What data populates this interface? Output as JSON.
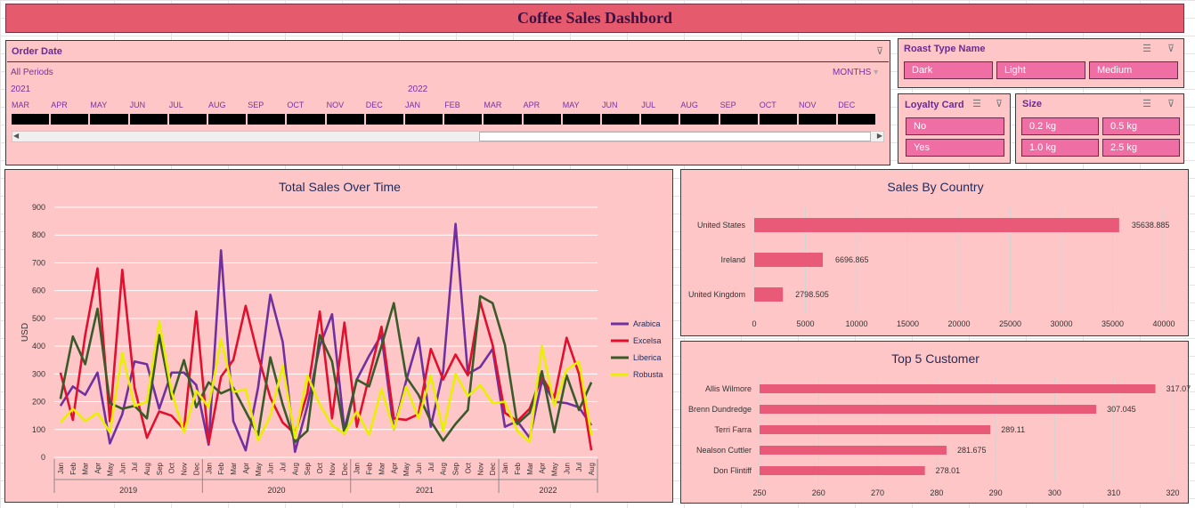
{
  "dashboard": {
    "title": "Coffee Sales Dashbord"
  },
  "timeline": {
    "title": "Order Date",
    "period": "All Periods",
    "level": "MONTHS",
    "years": [
      "2021",
      "2022"
    ],
    "months": [
      "MAR",
      "APR",
      "MAY",
      "JUN",
      "JUL",
      "AUG",
      "SEP",
      "OCT",
      "NOV",
      "DEC",
      "JAN",
      "FEB",
      "MAR",
      "APR",
      "MAY",
      "JUN",
      "JUL",
      "AUG",
      "SEP",
      "OCT",
      "NOV",
      "DEC"
    ]
  },
  "roast_slicer": {
    "title": "Roast Type Name",
    "items": [
      "Dark",
      "Light",
      "Medium"
    ]
  },
  "loyalty_slicer": {
    "title": "Loyalty Card",
    "items": [
      "No",
      "Yes"
    ]
  },
  "size_slicer": {
    "title": "Size",
    "items": [
      "0.2 kg",
      "0.5 kg",
      "1.0 kg",
      "2.5 kg"
    ]
  },
  "colors": {
    "arabica": "#7030a0",
    "excelsa": "#e0102e",
    "liberica": "#3a5a2a",
    "robusta": "#e8f000",
    "bar": "#e85a78",
    "panel": "#ffc6c7",
    "timeline_bar": "#000000"
  },
  "chart_data": [
    {
      "type": "line",
      "title": "Total Sales Over Time",
      "ylabel": "USD",
      "ylim": [
        0,
        900
      ],
      "yticks": [
        0,
        100,
        200,
        300,
        400,
        500,
        600,
        700,
        800,
        900
      ],
      "years": [
        "2019",
        "2020",
        "2021",
        "2022"
      ],
      "x": [
        "Jan",
        "Feb",
        "Mar",
        "Apr",
        "May",
        "Jun",
        "Jul",
        "Aug",
        "Sep",
        "Oct",
        "Nov",
        "Dec",
        "Jan",
        "Feb",
        "Mar",
        "Apr",
        "May",
        "Jun",
        "Jul",
        "Aug",
        "Sep",
        "Oct",
        "Nov",
        "Dec",
        "Jan",
        "Feb",
        "Mar",
        "Apr",
        "May",
        "Jun",
        "Jul",
        "Aug",
        "Sep",
        "Oct",
        "Nov",
        "Dec",
        "Jan",
        "Feb",
        "Mar",
        "Apr",
        "May",
        "Jun",
        "Jul",
        "Aug"
      ],
      "legend": "right",
      "series": [
        {
          "name": "Arabica",
          "color": "#7030a0",
          "values": [
            185,
            255,
            225,
            305,
            50,
            155,
            345,
            335,
            175,
            305,
            305,
            260,
            45,
            745,
            130,
            25,
            250,
            585,
            415,
            20,
            185,
            400,
            515,
            100,
            280,
            365,
            440,
            100,
            275,
            430,
            110,
            310,
            840,
            300,
            325,
            390,
            110,
            130,
            70,
            275,
            200,
            195,
            180,
            115
          ]
        },
        {
          "name": "Excelsa",
          "color": "#e0102e",
          "values": [
            305,
            135,
            440,
            680,
            130,
            675,
            250,
            70,
            165,
            150,
            100,
            525,
            50,
            290,
            350,
            545,
            365,
            215,
            125,
            85,
            230,
            525,
            140,
            485,
            110,
            290,
            470,
            140,
            135,
            155,
            390,
            280,
            370,
            295,
            560,
            405,
            160,
            130,
            175,
            290,
            215,
            430,
            300,
            25
          ]
        },
        {
          "name": "Liberica",
          "color": "#3a5a2a",
          "values": [
            210,
            435,
            335,
            535,
            195,
            175,
            185,
            140,
            440,
            210,
            350,
            180,
            270,
            230,
            250,
            165,
            80,
            360,
            190,
            55,
            95,
            440,
            345,
            85,
            280,
            255,
            400,
            555,
            290,
            225,
            130,
            60,
            120,
            170,
            580,
            555,
            405,
            120,
            160,
            310,
            90,
            295,
            170,
            270
          ]
        },
        {
          "name": "Robusta",
          "color": "#e8f000",
          "values": [
            125,
            175,
            130,
            160,
            90,
            375,
            185,
            200,
            490,
            235,
            90,
            240,
            180,
            425,
            235,
            245,
            60,
            150,
            330,
            70,
            295,
            190,
            115,
            85,
            165,
            80,
            245,
            100,
            255,
            140,
            295,
            95,
            300,
            220,
            260,
            195,
            200,
            95,
            55,
            400,
            185,
            315,
            345,
            80
          ]
        }
      ]
    },
    {
      "type": "bar",
      "title": "Sales By Country",
      "categories": [
        "United States",
        "Ireland",
        "United Kingdom"
      ],
      "values": [
        35638.885,
        6696.865,
        2798.505
      ],
      "labels": [
        "35638.885",
        "6696.865",
        "2798.505"
      ],
      "xlim": [
        0,
        40000
      ],
      "xticks": [
        0,
        5000,
        10000,
        15000,
        20000,
        25000,
        30000,
        35000,
        40000
      ]
    },
    {
      "type": "bar",
      "title": "Top 5 Customer",
      "categories": [
        "Allis Wilmore",
        "Brenn Dundredge",
        "Terri Farra",
        "Nealson Cuttler",
        "Don Flintiff"
      ],
      "values": [
        317.07,
        307.045,
        289.11,
        281.675,
        278.01
      ],
      "labels": [
        "317.07",
        "307.045",
        "289.11",
        "281.675",
        "278.01"
      ],
      "xlim": [
        250,
        320
      ],
      "xticks": [
        250,
        260,
        270,
        280,
        290,
        300,
        310,
        320
      ]
    }
  ]
}
